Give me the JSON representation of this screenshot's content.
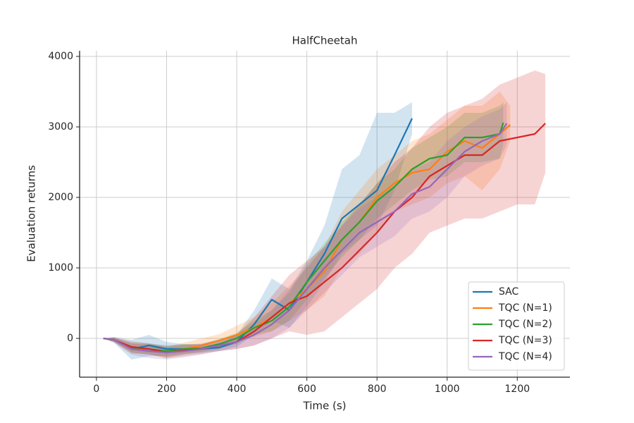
{
  "chart_data": {
    "type": "line",
    "title": "HalfCheetah",
    "x_label": "Time (s)",
    "y_label": "Evaluation returns",
    "xlim": [
      -48,
      1350
    ],
    "ylim": [
      -550,
      4080
    ],
    "xticks": [
      0,
      200,
      400,
      600,
      800,
      1000,
      1200
    ],
    "yticks": [
      0,
      1000,
      2000,
      3000,
      4000
    ],
    "grid": true,
    "legend_position": "lower right",
    "series": [
      {
        "name": "SAC",
        "color": "#1f77b4",
        "x": [
          20,
          50,
          100,
          150,
          200,
          250,
          300,
          350,
          400,
          450,
          500,
          550,
          600,
          650,
          700,
          750,
          800,
          850,
          900
        ],
        "values": [
          0,
          -20,
          -150,
          -100,
          -150,
          -150,
          -150,
          -130,
          -50,
          200,
          550,
          400,
          800,
          1200,
          1700,
          1900,
          2100,
          2600,
          3120
        ],
        "lower": [
          0,
          -60,
          -300,
          -250,
          -250,
          -220,
          -200,
          -180,
          -120,
          50,
          250,
          150,
          450,
          800,
          1200,
          1400,
          1600,
          2100,
          2900
        ],
        "upper": [
          0,
          20,
          -20,
          50,
          -50,
          -80,
          -100,
          -80,
          50,
          400,
          850,
          700,
          1100,
          1600,
          2400,
          2600,
          3200,
          3200,
          3350
        ]
      },
      {
        "name": "TQC (N=1)",
        "color": "#ff7f0e",
        "x": [
          20,
          50,
          100,
          150,
          200,
          250,
          300,
          350,
          400,
          450,
          500,
          550,
          600,
          650,
          700,
          750,
          800,
          850,
          900,
          950,
          1000,
          1050,
          1100,
          1150,
          1180
        ],
        "values": [
          0,
          -20,
          -150,
          -150,
          -200,
          -150,
          -100,
          -30,
          50,
          150,
          300,
          500,
          700,
          950,
          1400,
          1650,
          2000,
          2200,
          2350,
          2400,
          2650,
          2800,
          2700,
          2900,
          3030
        ],
        "lower": [
          0,
          -50,
          -220,
          -220,
          -280,
          -230,
          -180,
          -120,
          -50,
          20,
          100,
          250,
          400,
          600,
          1000,
          1200,
          1500,
          1800,
          1900,
          2000,
          2200,
          2300,
          2100,
          2400,
          2800
        ],
        "upper": [
          0,
          10,
          -80,
          -80,
          -120,
          -60,
          0,
          60,
          180,
          300,
          500,
          750,
          1000,
          1300,
          1800,
          2100,
          2400,
          2600,
          2800,
          2900,
          3100,
          3300,
          3300,
          3500,
          3300
        ]
      },
      {
        "name": "TQC (N=2)",
        "color": "#2ca02c",
        "x": [
          20,
          50,
          100,
          150,
          200,
          250,
          300,
          350,
          400,
          450,
          500,
          550,
          600,
          650,
          700,
          750,
          800,
          850,
          900,
          950,
          1000,
          1050,
          1100,
          1150,
          1160
        ],
        "values": [
          0,
          -20,
          -130,
          -150,
          -180,
          -150,
          -140,
          -80,
          0,
          150,
          250,
          450,
          800,
          1100,
          1400,
          1650,
          1950,
          2150,
          2400,
          2550,
          2600,
          2850,
          2850,
          2900,
          3060
        ],
        "lower": [
          0,
          -50,
          -200,
          -230,
          -260,
          -220,
          -200,
          -150,
          -80,
          50,
          100,
          250,
          550,
          850,
          1150,
          1400,
          1700,
          1900,
          2100,
          2250,
          2300,
          2500,
          2500,
          2550,
          2750
        ],
        "upper": [
          0,
          10,
          -60,
          -70,
          -100,
          -80,
          -80,
          -10,
          80,
          250,
          400,
          650,
          1050,
          1350,
          1650,
          1900,
          2200,
          2400,
          2700,
          2850,
          3000,
          3200,
          3200,
          3300,
          3350
        ]
      },
      {
        "name": "TQC (N=3)",
        "color": "#d62728",
        "x": [
          20,
          50,
          100,
          150,
          200,
          250,
          300,
          350,
          400,
          450,
          500,
          550,
          600,
          650,
          700,
          750,
          800,
          850,
          900,
          950,
          1000,
          1050,
          1100,
          1150,
          1200,
          1250,
          1280
        ],
        "values": [
          0,
          -20,
          -120,
          -150,
          -200,
          -170,
          -150,
          -100,
          -50,
          100,
          300,
          500,
          600,
          800,
          1000,
          1250,
          1500,
          1800,
          2000,
          2300,
          2450,
          2600,
          2600,
          2800,
          2850,
          2900,
          3050
        ],
        "lower": [
          0,
          -50,
          -200,
          -230,
          -280,
          -250,
          -220,
          -180,
          -150,
          -100,
          0,
          100,
          50,
          100,
          300,
          500,
          700,
          1000,
          1200,
          1500,
          1600,
          1700,
          1700,
          1800,
          1900,
          1900,
          2350
        ],
        "upper": [
          0,
          10,
          -40,
          -70,
          -120,
          -90,
          -80,
          -20,
          50,
          300,
          600,
          900,
          1100,
          1300,
          1600,
          1900,
          2200,
          2500,
          2700,
          3000,
          3200,
          3300,
          3400,
          3600,
          3700,
          3800,
          3750
        ]
      },
      {
        "name": "TQC (N=4)",
        "color": "#9467bd",
        "x": [
          20,
          50,
          100,
          150,
          200,
          250,
          300,
          350,
          400,
          450,
          500,
          550,
          600,
          650,
          700,
          750,
          800,
          850,
          900,
          950,
          1000,
          1050,
          1100,
          1150,
          1170
        ],
        "values": [
          0,
          -20,
          -150,
          -180,
          -200,
          -180,
          -150,
          -100,
          -50,
          50,
          200,
          400,
          700,
          1000,
          1250,
          1500,
          1650,
          1800,
          2050,
          2150,
          2400,
          2650,
          2800,
          2900,
          3050
        ],
        "lower": [
          0,
          -60,
          -230,
          -280,
          -300,
          -270,
          -230,
          -180,
          -150,
          -100,
          0,
          150,
          400,
          650,
          900,
          1150,
          1300,
          1450,
          1700,
          1800,
          2000,
          2300,
          2450,
          2550,
          2750
        ],
        "upper": [
          0,
          20,
          -70,
          -80,
          -100,
          -90,
          -70,
          -20,
          50,
          200,
          400,
          700,
          1000,
          1300,
          1600,
          1850,
          2000,
          2150,
          2400,
          2500,
          2800,
          3000,
          3150,
          3250,
          3350
        ]
      }
    ]
  }
}
